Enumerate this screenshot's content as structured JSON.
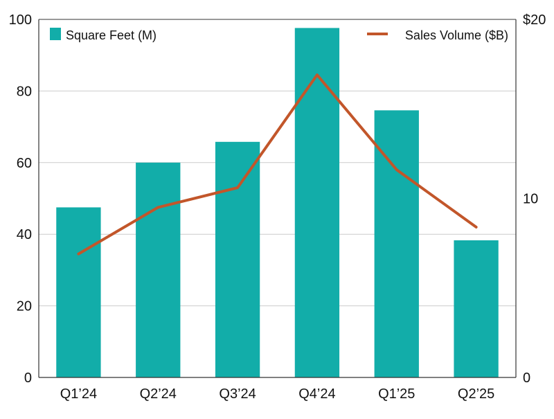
{
  "chart_data": {
    "type": "bar",
    "categories": [
      "Q1’24",
      "Q2’24",
      "Q3’24",
      "Q4’24",
      "Q1’25",
      "Q2’25"
    ],
    "series": [
      {
        "name": "Square Feet (M)",
        "type": "bar",
        "axis": "left",
        "values": [
          47.5,
          60,
          65.8,
          97.6,
          74.6,
          38.3
        ]
      },
      {
        "name": "Sales Volume ($B)",
        "type": "line",
        "axis": "right",
        "values": [
          6.9,
          9.5,
          10.6,
          16.9,
          11.6,
          8.4
        ]
      }
    ],
    "y_left": {
      "ylim": [
        0,
        100
      ],
      "ticks": [
        "0",
        "20",
        "40",
        "60",
        "80",
        "100"
      ]
    },
    "y_right": {
      "ylim": [
        0,
        20
      ],
      "ticks": [
        "0",
        "10",
        "$20"
      ]
    },
    "grid": true,
    "legend": [
      {
        "label": "Square Feet (M)",
        "position": "top-left"
      },
      {
        "label": "Sales Volume ($B)",
        "position": "top-right"
      }
    ],
    "colors": {
      "bar": "#12ADA9",
      "line": "#C2562A",
      "grid": "#CCCCCC",
      "axis": "#333333"
    }
  }
}
